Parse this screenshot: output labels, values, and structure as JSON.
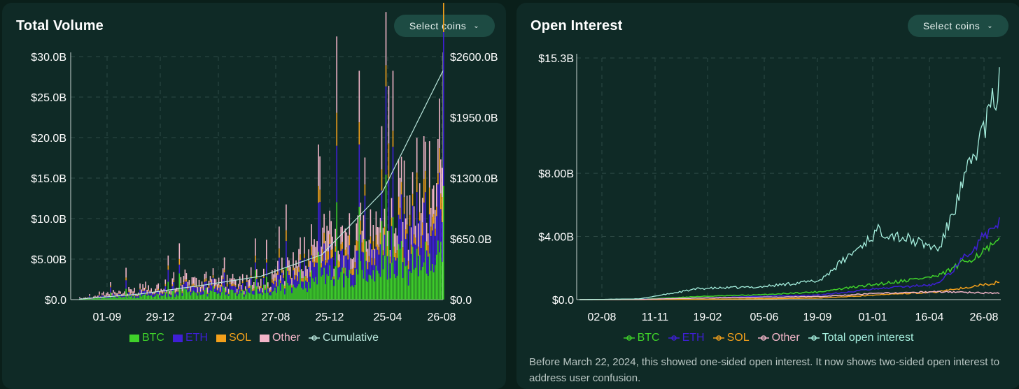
{
  "left": {
    "title": "Total Volume",
    "select_label": "Select coins",
    "chevron_icon": "chevron-down-icon"
  },
  "right": {
    "title": "Open Interest",
    "select_label": "Select coins",
    "chevron_icon": "chevron-down-icon",
    "note": "Before March 22, 2024, this showed one-sided open interest. It now shows two-sided open interest to address user confusion."
  },
  "colors": {
    "btc": "#3fd12a",
    "eth": "#3f1fd6",
    "sol": "#f3a01b",
    "other": "#f2b5c8",
    "cumulative": "#b9e6dc",
    "total_oi": "#a6f0df",
    "grid": "#2e4a45",
    "axis_text": "#ffffff"
  },
  "chart_data": [
    {
      "type": "bar",
      "stacked": true,
      "title": "Total Volume",
      "x_ticks": [
        "01-09",
        "29-12",
        "27-04",
        "27-08",
        "25-12",
        "25-04",
        "26-08"
      ],
      "y_ticks": [
        "$0.0",
        "$5.00B",
        "$10.0B",
        "$15.0B",
        "$20.0B",
        "$25.0B",
        "$30.0B"
      ],
      "ylim": [
        0,
        30
      ],
      "y2_ticks": [
        "$0.0",
        "$650.0B",
        "$1300.0B",
        "$1950.0B",
        "$2600.0B"
      ],
      "y2lim": [
        0,
        2600
      ],
      "legend": [
        "BTC",
        "ETH",
        "SOL",
        "Other",
        "Cumulative"
      ],
      "legend_placement": "bottom",
      "grid": true,
      "x": [
        "01-09",
        "29-12",
        "27-04",
        "27-08",
        "25-12",
        "25-04",
        "26-08"
      ],
      "series": [
        {
          "name": "BTC",
          "values": [
            0.05,
            0.4,
            0.9,
            0.9,
            2.5,
            3.2,
            6.0
          ]
        },
        {
          "name": "ETH",
          "values": [
            0.02,
            0.3,
            0.6,
            0.5,
            1.8,
            2.2,
            5.5
          ]
        },
        {
          "name": "SOL",
          "values": [
            0.0,
            0.1,
            0.2,
            0.2,
            0.8,
            1.0,
            2.0
          ]
        },
        {
          "name": "Other",
          "values": [
            0.03,
            0.4,
            0.8,
            0.6,
            1.9,
            2.0,
            3.5
          ]
        },
        {
          "name": "Cumulative",
          "axis": "y2",
          "values": [
            5,
            60,
            150,
            250,
            480,
            1150,
            2450
          ]
        }
      ]
    },
    {
      "type": "line",
      "title": "Open Interest",
      "x_ticks": [
        "02-08",
        "11-11",
        "19-02",
        "05-06",
        "19-09",
        "01-01",
        "16-04",
        "26-08"
      ],
      "y_ticks": [
        "$0.0",
        "$4.00B",
        "$8.00B",
        "$15.3B"
      ],
      "ylim": [
        0,
        15.3
      ],
      "legend": [
        "BTC",
        "ETH",
        "SOL",
        "Other",
        "Total open interest"
      ],
      "legend_placement": "bottom",
      "grid": true,
      "x": [
        "02-08",
        "11-11",
        "19-02",
        "05-06",
        "19-09",
        "01-01",
        "16-04",
        "26-08"
      ],
      "series": [
        {
          "name": "BTC",
          "values": [
            0.0,
            0.02,
            0.2,
            0.3,
            0.5,
            1.0,
            1.5,
            3.6
          ]
        },
        {
          "name": "ETH",
          "values": [
            0.0,
            0.02,
            0.1,
            0.2,
            0.3,
            0.7,
            1.0,
            5.0
          ]
        },
        {
          "name": "SOL",
          "values": [
            0.0,
            0.0,
            0.02,
            0.05,
            0.1,
            0.3,
            0.5,
            1.1
          ]
        },
        {
          "name": "Other",
          "values": [
            0.0,
            0.01,
            0.1,
            0.15,
            0.2,
            0.4,
            0.5,
            0.4
          ]
        },
        {
          "name": "Total open interest",
          "values": [
            0.0,
            0.05,
            0.7,
            0.8,
            1.2,
            4.4,
            3.2,
            13.5
          ]
        }
      ]
    }
  ]
}
